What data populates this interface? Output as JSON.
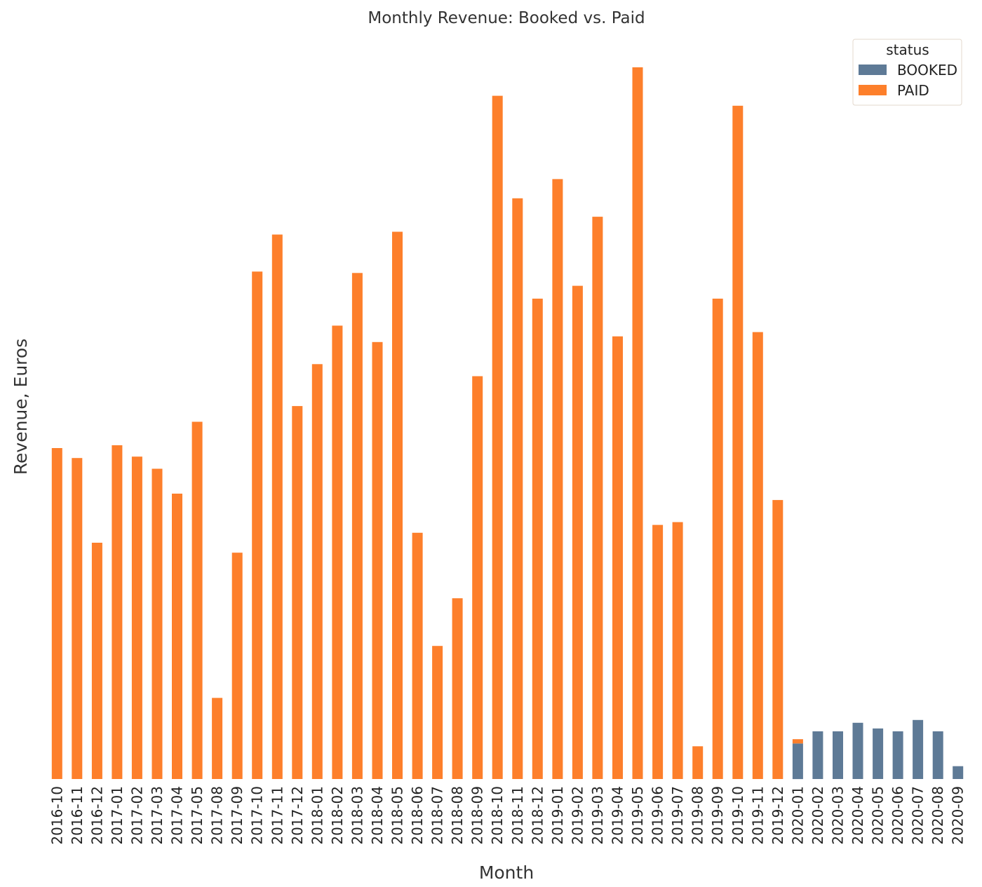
{
  "chart_data": {
    "type": "bar",
    "stacked": true,
    "title": "Monthly Revenue: Booked vs. Paid",
    "xlabel": "Month",
    "ylabel": "Revenue, Euros",
    "ylim": [
      0,
      100
    ],
    "grid": false,
    "legend": {
      "title": "status",
      "position": "top-right"
    },
    "categories": [
      "2016-10",
      "2016-11",
      "2016-12",
      "2017-01",
      "2017-02",
      "2017-03",
      "2017-04",
      "2017-05",
      "2017-08",
      "2017-09",
      "2017-10",
      "2017-11",
      "2017-12",
      "2018-01",
      "2018-02",
      "2018-03",
      "2018-04",
      "2018-05",
      "2018-06",
      "2018-07",
      "2018-08",
      "2018-09",
      "2018-10",
      "2018-11",
      "2018-12",
      "2019-01",
      "2019-02",
      "2019-03",
      "2019-04",
      "2019-05",
      "2019-06",
      "2019-07",
      "2019-08",
      "2019-09",
      "2019-10",
      "2019-11",
      "2019-12",
      "2020-01",
      "2020-02",
      "2020-03",
      "2020-04",
      "2020-05",
      "2020-06",
      "2020-07",
      "2020-08",
      "2020-09"
    ],
    "series": [
      {
        "name": "BOOKED",
        "color": "#5e7a96",
        "values": [
          0,
          0,
          0,
          0,
          0,
          0,
          0,
          0,
          0,
          0,
          0,
          0,
          0,
          0,
          0,
          0,
          0,
          0,
          0,
          0,
          0,
          0,
          0,
          0,
          0,
          0,
          0,
          0,
          0,
          0,
          0,
          0,
          0,
          0,
          0,
          0,
          0,
          5.0,
          6.7,
          6.7,
          7.9,
          7.1,
          6.7,
          8.3,
          6.7,
          1.8
        ]
      },
      {
        "name": "PAID",
        "color": "#fd7f2b",
        "values": [
          46.5,
          45.1,
          33.2,
          46.9,
          45.3,
          43.6,
          40.1,
          50.2,
          11.4,
          31.8,
          71.3,
          76.5,
          52.4,
          58.3,
          63.7,
          71.1,
          61.4,
          76.9,
          34.6,
          18.7,
          25.4,
          56.6,
          96.0,
          81.6,
          67.5,
          84.3,
          69.3,
          79.0,
          62.2,
          100.0,
          35.7,
          36.1,
          4.6,
          67.5,
          94.6,
          62.8,
          39.2,
          0.6,
          0,
          0,
          0,
          0,
          0,
          0,
          0,
          0
        ]
      }
    ]
  }
}
